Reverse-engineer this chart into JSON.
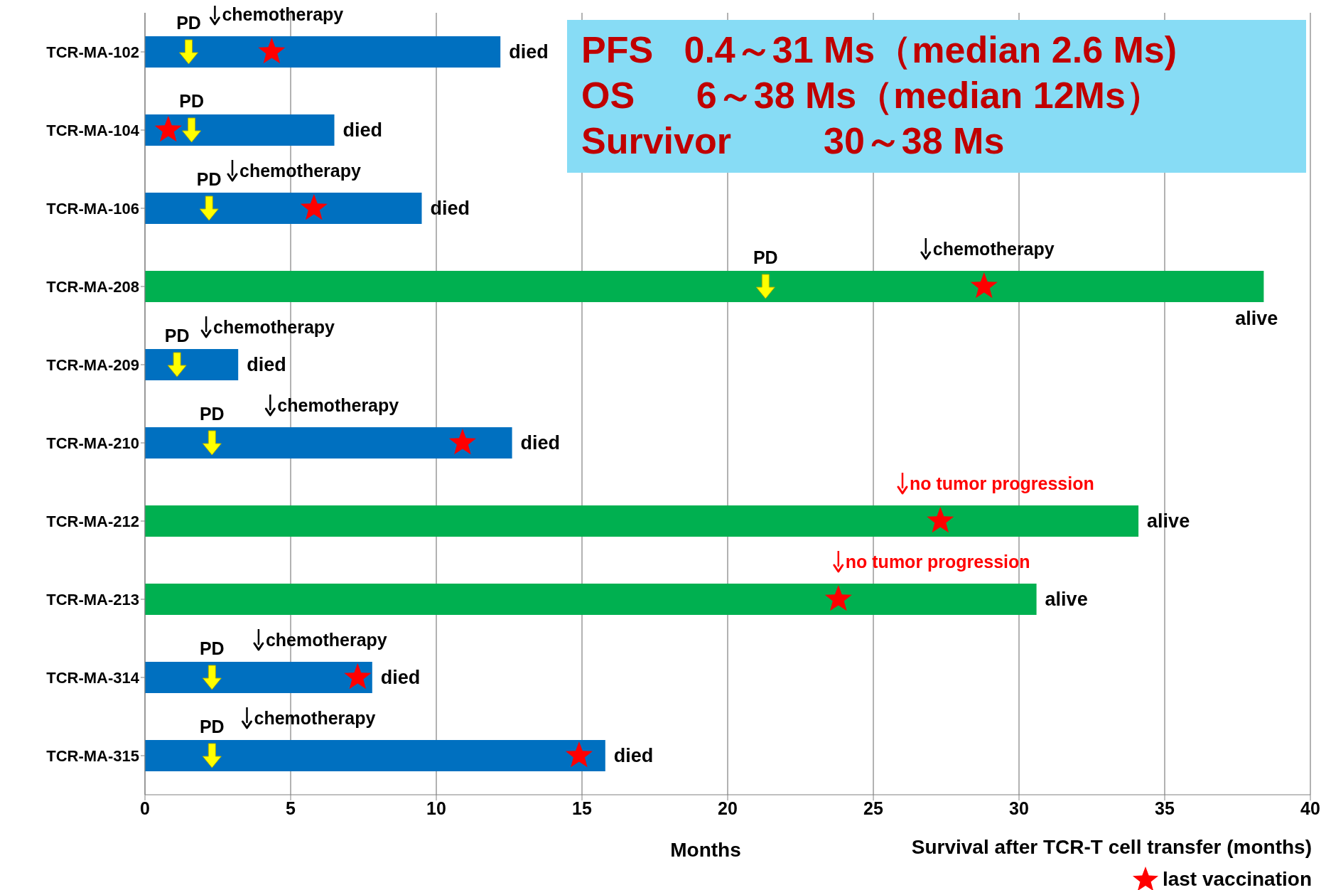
{
  "chart_data": {
    "type": "bar",
    "orientation": "horizontal",
    "xlabel": "Months",
    "subtitle": "Survival after TCR-T cell transfer (months)",
    "annotations": [
      "PFS   0.4～31 Ms（median 2.6 Ms)",
      "OS      6～38 Ms（median 12Ms）",
      "Survivor         30～38 Ms"
    ],
    "categories": [
      "TCR-MA-102",
      "TCR-MA-104",
      "TCR-MA-106",
      "TCR-MA-208",
      "TCR-MA-209",
      "TCR-MA-210",
      "TCR-MA-212",
      "TCR-MA-213",
      "TCR-MA-314",
      "TCR-MA-315"
    ],
    "series": [
      {
        "type": "bar",
        "values": [
          12.2,
          6.5,
          9.5,
          38.4,
          3.2,
          12.6,
          34.1,
          30.6,
          7.8,
          15.8
        ],
        "colors": [
          "#0070c0",
          "#0070c0",
          "#0070c0",
          "#00b050",
          "#0070c0",
          "#0070c0",
          "#00b050",
          "#00b050",
          "#0070c0",
          "#0070c0"
        ],
        "value_labels": [
          "died",
          "died",
          "died",
          "alive",
          "died",
          "died",
          "alive",
          "alive",
          "died",
          "died"
        ]
      },
      {
        "type": "scatter",
        "marker": "triangle",
        "color": "#ffff00",
        "values": [
          1.5,
          1.6,
          2.2,
          21.3,
          1.1,
          2.3,
          null,
          null,
          2.3,
          2.3
        ],
        "value_labels": [
          "PD",
          "PD",
          "PD",
          "PD",
          "PD",
          "PD",
          null,
          null,
          "PD",
          "PD"
        ]
      },
      {
        "type": "scatter",
        "colors": [
          "#000000",
          null,
          "#000000",
          "#000000",
          "#000000",
          "#000000",
          "#ff0000",
          "#ff0000",
          "#000000",
          "#000000"
        ],
        "values": [
          2.4,
          null,
          3.0,
          26.8,
          2.1,
          4.3,
          26.0,
          23.8,
          3.9,
          3.5
        ],
        "value_labels": [
          "chemotherapy",
          null,
          "chemotherapy",
          "chemotherapy",
          "chemotherapy",
          "chemotherapy",
          "no tumor progression",
          "no tumor progression",
          "chemotherapy",
          "chemotherapy"
        ]
      },
      {
        "type": "scatter",
        "name": "last vaccination",
        "marker": "star",
        "color": "#ff0000",
        "values": [
          4.35,
          0.8,
          5.8,
          28.8,
          null,
          10.9,
          27.3,
          23.8,
          7.3,
          14.9
        ]
      }
    ],
    "xlim": [
      0,
      40
    ],
    "xticks": [
      0,
      5,
      10,
      15,
      20,
      25,
      30,
      35,
      40
    ],
    "grid": "x",
    "legend": "bottom right"
  }
}
